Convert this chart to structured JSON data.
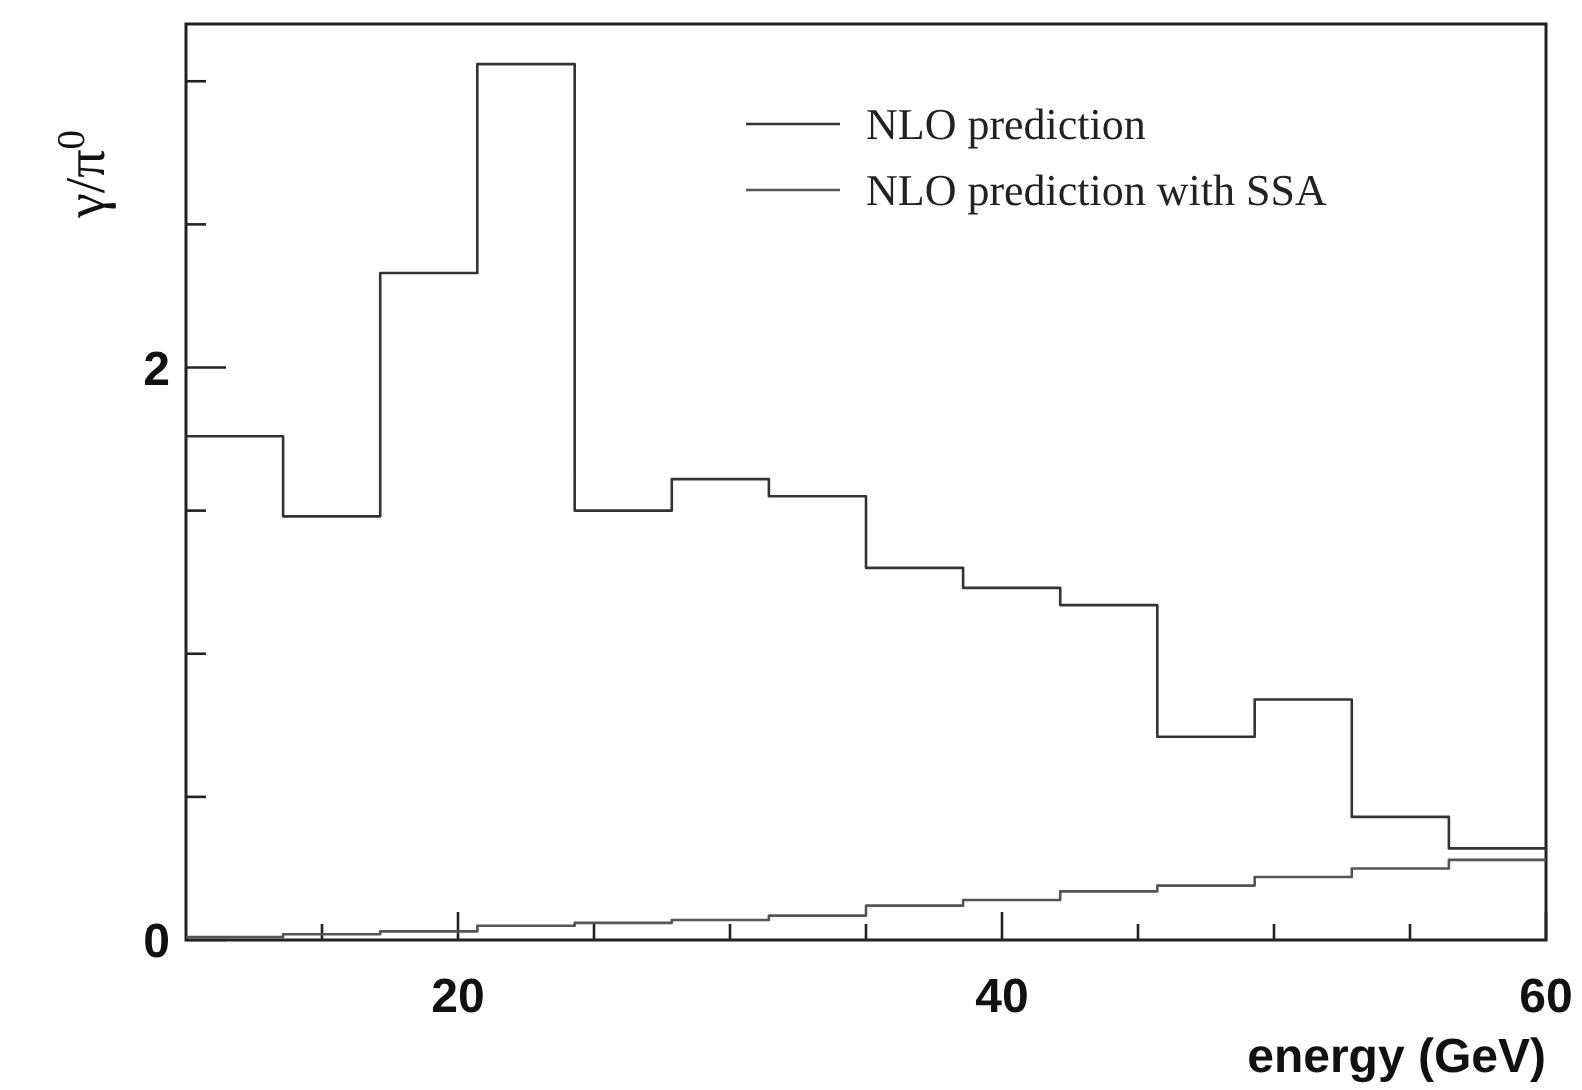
{
  "chart_data": {
    "type": "histogram",
    "xlabel": "energy (GeV)",
    "ylabel": "γ/π$^{0}$",
    "bins": [
      10,
      13.57,
      17.14,
      20.71,
      24.29,
      27.86,
      31.43,
      35,
      38.57,
      42.14,
      45.71,
      49.29,
      52.86,
      56.43,
      60
    ],
    "series": [
      {
        "name": "NLO prediction",
        "color": "#333333",
        "values": [
          1.76,
          1.48,
          2.33,
          3.06,
          1.5,
          1.61,
          1.55,
          1.3,
          1.23,
          1.17,
          0.71,
          0.84,
          0.43,
          0.32
        ]
      },
      {
        "name": "NLO prediction with SSA",
        "color": "#555555",
        "values": [
          0.01,
          0.02,
          0.03,
          0.05,
          0.06,
          0.07,
          0.085,
          0.12,
          0.14,
          0.17,
          0.19,
          0.22,
          0.25,
          0.28
        ]
      }
    ],
    "xlim": [
      10,
      60
    ],
    "ylim": [
      0,
      3.2
    ],
    "xticks": [
      {
        "value": 15,
        "label": null
      },
      20,
      {
        "value": 25,
        "label": null
      },
      {
        "value": 30,
        "label": null
      },
      {
        "value": 35,
        "label": null
      },
      40,
      {
        "value": 45,
        "label": null
      },
      {
        "value": 50,
        "label": null
      },
      {
        "value": 55,
        "label": null
      },
      60
    ],
    "yticks": [
      0,
      {
        "value": 0.5,
        "label": null
      },
      {
        "value": 1,
        "label": null
      },
      {
        "value": 1.5,
        "label": null
      },
      2,
      {
        "value": 2.5,
        "label": null
      },
      {
        "value": 3,
        "label": null
      }
    ],
    "legend": "top right",
    "grid": false
  }
}
